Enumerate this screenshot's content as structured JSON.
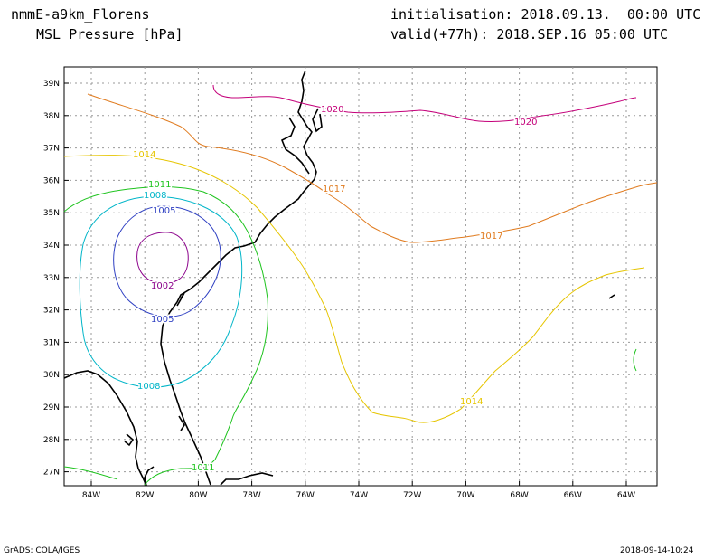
{
  "header": {
    "model": "nmmE-a9km_Florens",
    "variable": "MSL Pressure [hPa]",
    "init": "initialisation: 2018.09.13.  00:00 UTC",
    "valid": "valid(+77h): 2018.SEP.16 05:00 UTC"
  },
  "footer": {
    "credit": "GrADS: COLA/IGES",
    "timestamp": "2018-09-14-10:24"
  },
  "map": {
    "lon_ticks": [
      "84W",
      "82W",
      "80W",
      "78W",
      "76W",
      "74W",
      "72W",
      "70W",
      "68W",
      "66W",
      "64W"
    ],
    "lat_ticks": [
      "39N",
      "38N",
      "37N",
      "36N",
      "35N",
      "34N",
      "33N",
      "32N",
      "31N",
      "30N",
      "29N",
      "28N",
      "27N"
    ],
    "grid": true,
    "coast_color": "#000000"
  },
  "contours": [
    {
      "value": "1002",
      "color": "#8b008b"
    },
    {
      "value": "1005",
      "color": "#2e3fc2"
    },
    {
      "value": "1008",
      "color": "#00b5c8"
    },
    {
      "value": "1011",
      "color": "#1fc41f"
    },
    {
      "value": "1014",
      "color": "#e6c500"
    },
    {
      "value": "1017",
      "color": "#e07b1f"
    },
    {
      "value": "1020",
      "color": "#c4007a"
    }
  ]
}
